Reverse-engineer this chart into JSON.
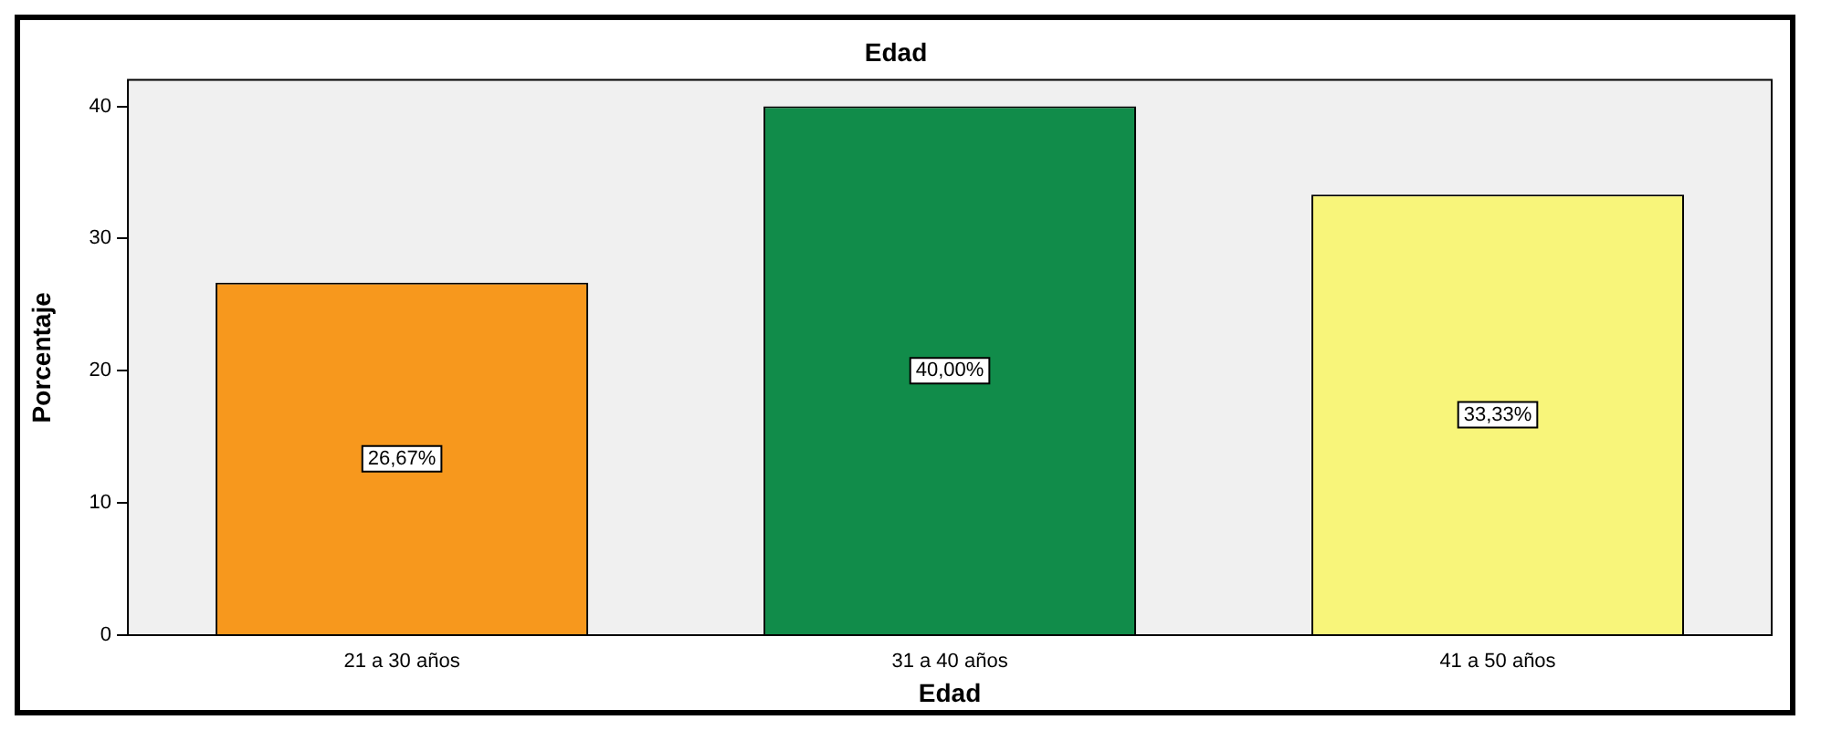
{
  "chart_data": {
    "type": "bar",
    "title": "Edad",
    "xlabel": "Edad",
    "ylabel": "Porcentaje",
    "categories": [
      "21 a 30 años",
      "31 a 40 años",
      "41 a 50 años"
    ],
    "values": [
      26.67,
      40.0,
      33.33
    ],
    "colors": [
      "#f7981d",
      "#118c4a",
      "#f8f57a"
    ],
    "value_labels": [
      "26,67%",
      "40,00%",
      "33,33%"
    ],
    "ylim": [
      0,
      42
    ],
    "yticks": [
      0,
      10,
      20,
      30,
      40
    ],
    "grid": false
  }
}
